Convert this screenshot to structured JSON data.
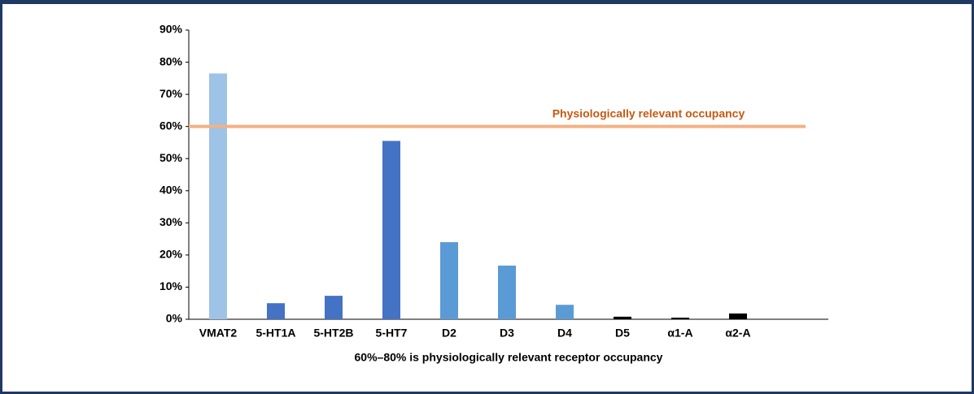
{
  "chart_data": {
    "type": "bar",
    "x_label": "60%–80% is physiologically relevant receptor occupancy",
    "categories": [
      "VMAT2",
      "5-HT1A",
      "5-HT2B",
      "5-HT7",
      "D2",
      "D3",
      "D4",
      "D5",
      "α1-A",
      "α2-A"
    ],
    "values": [
      76.5,
      5,
      7.3,
      55.5,
      24,
      16.7,
      4.5,
      0.8,
      0.5,
      1.8
    ],
    "colors": [
      "#9dc3e6",
      "#4472c4",
      "#4472c4",
      "#4472c4",
      "#5b9bd5",
      "#5b9bd5",
      "#5b9bd5",
      "#000000",
      "#000000",
      "#000000"
    ],
    "ylim": [
      0,
      90
    ],
    "yticks": [
      {
        "value": 0,
        "label": "0%"
      },
      {
        "value": 10,
        "label": "10%"
      },
      {
        "value": 20,
        "label": "20%"
      },
      {
        "value": 30,
        "label": "30%"
      },
      {
        "value": 40,
        "label": "40%"
      },
      {
        "value": 50,
        "label": "50%"
      },
      {
        "value": 60,
        "label": "60%"
      },
      {
        "value": 70,
        "label": "70%"
      },
      {
        "value": 80,
        "label": "80%"
      },
      {
        "value": 90,
        "label": "90%"
      }
    ],
    "grid": false,
    "reference_line": {
      "value": 60,
      "label": "Physiologically relevant occupancy",
      "color": "#f4b183",
      "label_color": "#c55a11"
    }
  }
}
